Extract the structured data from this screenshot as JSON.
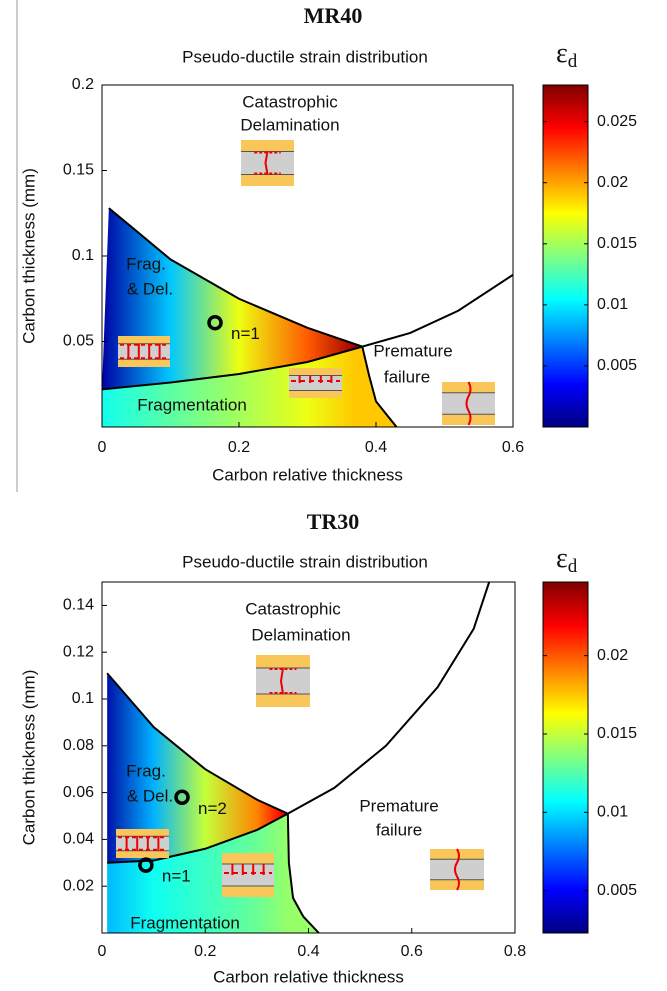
{
  "chart_data": [
    {
      "type": "contour",
      "title": "MR40",
      "subtitle": "Pseudo-ductile strain distribution",
      "x_label": "Carbon relative thickness",
      "y_label": "Carbon thickness (mm)",
      "xlim": [
        0,
        0.6
      ],
      "xticks": [
        0,
        0.2,
        0.4,
        0.6
      ],
      "ylim": [
        0,
        0.2
      ],
      "yticks": [
        0.05,
        0.1,
        0.15,
        0.2
      ],
      "colorbar": {
        "label": "ε",
        "label_sub": "d",
        "colormap": "jet",
        "lim": [
          0,
          0.028
        ],
        "ticks": [
          0.005,
          0.01,
          0.015,
          0.02,
          0.025
        ]
      },
      "boundaries": [
        {
          "x": [
            0.01,
            0.1,
            0.2,
            0.3,
            0.38
          ],
          "y": [
            0.128,
            0.098,
            0.075,
            0.058,
            0.047
          ]
        },
        {
          "x": [
            0,
            0.1,
            0.2,
            0.3,
            0.38
          ],
          "y": [
            0.022,
            0.026,
            0.031,
            0.038,
            0.047
          ]
        },
        {
          "x": [
            0.38,
            0.39,
            0.4,
            0.43
          ],
          "y": [
            0.047,
            0.03,
            0.015,
            0
          ]
        },
        {
          "x": [
            0.38,
            0.45,
            0.52,
            0.6
          ],
          "y": [
            0.047,
            0.055,
            0.068,
            0.089
          ]
        }
      ],
      "fields": [
        {
          "x": [
            0,
            0.1,
            0.2,
            0.3,
            0.37
          ],
          "values": [
            0.001,
            0.009,
            0.017,
            0.022,
            0.027
          ]
        },
        {
          "x": [
            0,
            0.1,
            0.2,
            0.3,
            0.37
          ],
          "values": [
            0.011,
            0.013,
            0.015,
            0.017,
            0.019
          ]
        }
      ],
      "points": [
        {
          "label": "n=1",
          "x": 0.165,
          "y": 0.061
        }
      ],
      "annotations": [
        {
          "lines": [
            "Catastrophic",
            "Delamination"
          ]
        },
        {
          "lines": [
            "Frag.",
            "& Del."
          ]
        },
        {
          "lines": [
            "Premature",
            "failure"
          ]
        },
        {
          "lines": [
            "Fragmentation"
          ]
        }
      ]
    },
    {
      "type": "contour",
      "title": "TR30",
      "subtitle": "Pseudo-ductile strain distribution",
      "x_label": "Carbon relative thickness",
      "y_label": "Carbon thickness (mm)",
      "xlim": [
        0,
        0.8
      ],
      "xticks": [
        0,
        0.2,
        0.4,
        0.6,
        0.8
      ],
      "ylim": [
        0,
        0.15
      ],
      "yticks": [
        0.02,
        0.04,
        0.06,
        0.08,
        0.1,
        0.12,
        0.14
      ],
      "colorbar": {
        "label": "ε",
        "label_sub": "d",
        "colormap": "jet",
        "lim": [
          0.0023,
          0.0247
        ],
        "ticks": [
          0.005,
          0.01,
          0.015,
          0.02
        ]
      },
      "boundaries": [
        {
          "x": [
            0.01,
            0.1,
            0.2,
            0.3,
            0.36
          ],
          "y": [
            0.111,
            0.088,
            0.07,
            0.057,
            0.051
          ]
        },
        {
          "x": [
            0.01,
            0.1,
            0.2,
            0.3,
            0.36
          ],
          "y": [
            0.03,
            0.031,
            0.036,
            0.044,
            0.051
          ]
        },
        {
          "x": [
            0.36,
            0.362,
            0.37,
            0.39,
            0.42
          ],
          "y": [
            0.051,
            0.03,
            0.015,
            0.007,
            0
          ]
        },
        {
          "x": [
            0.36,
            0.45,
            0.55,
            0.65,
            0.72,
            0.75
          ],
          "y": [
            0.051,
            0.062,
            0.08,
            0.105,
            0.13,
            0.15
          ]
        }
      ],
      "fields": [
        {
          "x": [
            0,
            0.1,
            0.2,
            0.3,
            0.35
          ],
          "values": [
            0.003,
            0.009,
            0.015,
            0.019,
            0.022
          ]
        },
        {
          "x": [
            0,
            0.1,
            0.2,
            0.3,
            0.36
          ],
          "values": [
            0.009,
            0.011,
            0.012,
            0.013,
            0.014
          ]
        }
      ],
      "points": [
        {
          "label": "n=2",
          "x": 0.155,
          "y": 0.058
        },
        {
          "label": "n=1",
          "x": 0.085,
          "y": 0.029
        }
      ],
      "annotations": [
        {
          "lines": [
            "Catastrophic",
            "Delamination"
          ]
        },
        {
          "lines": [
            "Frag.",
            "& Del."
          ]
        },
        {
          "lines": [
            "Premature",
            "failure"
          ]
        },
        {
          "lines": [
            "Fragmentation"
          ]
        }
      ]
    }
  ]
}
